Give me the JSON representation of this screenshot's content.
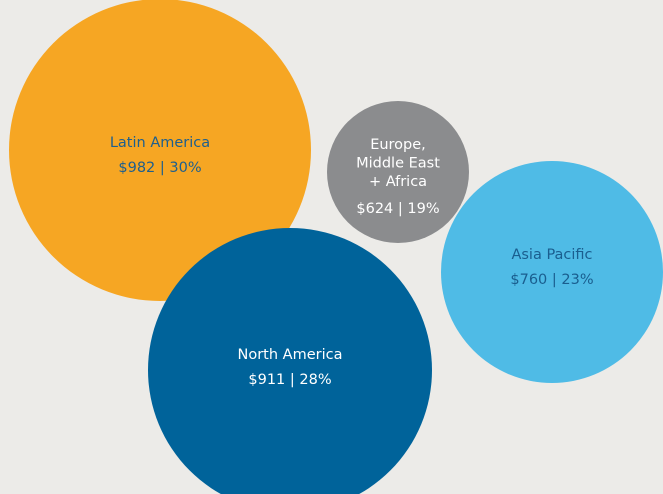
{
  "chart_data": {
    "type": "bubble",
    "categories": [
      [
        "Latin America"
      ],
      [
        "Europe,",
        "Middle East",
        "+ Africa"
      ],
      [
        "Asia Pacific"
      ],
      [
        "North America"
      ]
    ],
    "values": [
      982,
      624,
      760,
      911
    ],
    "shares": [
      30,
      19,
      23,
      28
    ],
    "value_labels": [
      "$982 | 30%",
      "$624 | 19%",
      "$760 | 23%",
      "$911 | 28%"
    ],
    "colors": [
      "#f6a623",
      "#8b8c8e",
      "#4fbbe6",
      "#00639a"
    ],
    "label_colors": [
      "#1d5f8e",
      "#ffffff",
      "#1a5e8f",
      "#ffffff"
    ]
  }
}
